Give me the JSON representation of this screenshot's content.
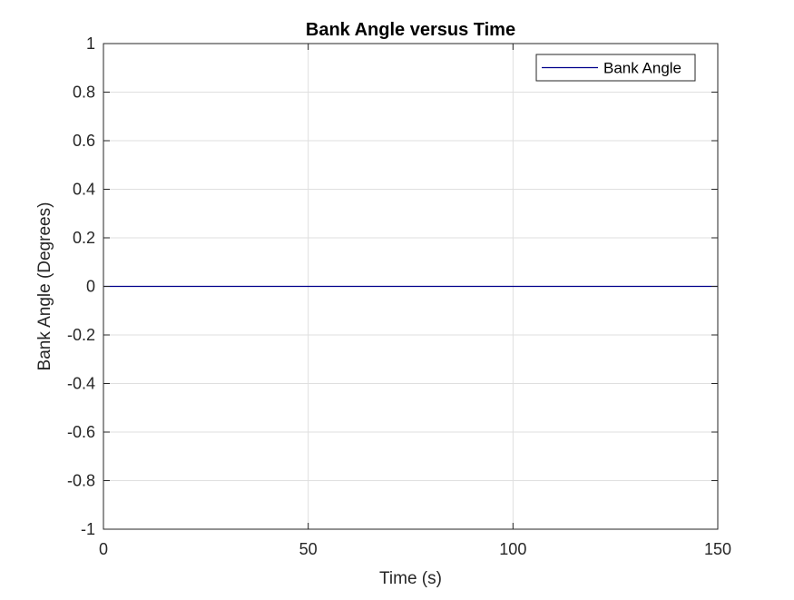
{
  "chart_data": {
    "type": "line",
    "title": "Bank Angle versus Time",
    "xlabel": "Time (s)",
    "ylabel": "Bank Angle (Degrees)",
    "xlim": [
      0,
      150
    ],
    "ylim": [
      -1,
      1
    ],
    "xticks": [
      0,
      50,
      100,
      150
    ],
    "xtick_labels": [
      "0",
      "50",
      "100",
      "150"
    ],
    "yticks": [
      -1,
      -0.8,
      -0.6,
      -0.4,
      -0.2,
      0,
      0.2,
      0.4,
      0.6,
      0.8,
      1
    ],
    "ytick_labels": [
      "-1",
      "-0.8",
      "-0.6",
      "-0.4",
      "-0.2",
      "0",
      "0.2",
      "0.4",
      "0.6",
      "0.8",
      "1"
    ],
    "grid": true,
    "legend_position": "top-right",
    "series": [
      {
        "name": "Bank Angle",
        "color": "#00008B",
        "x": [
          0,
          150
        ],
        "y": [
          0,
          0
        ]
      }
    ]
  },
  "colors": {
    "background": "#ffffff",
    "axes": "#262626",
    "grid": "#dfdfdf"
  }
}
